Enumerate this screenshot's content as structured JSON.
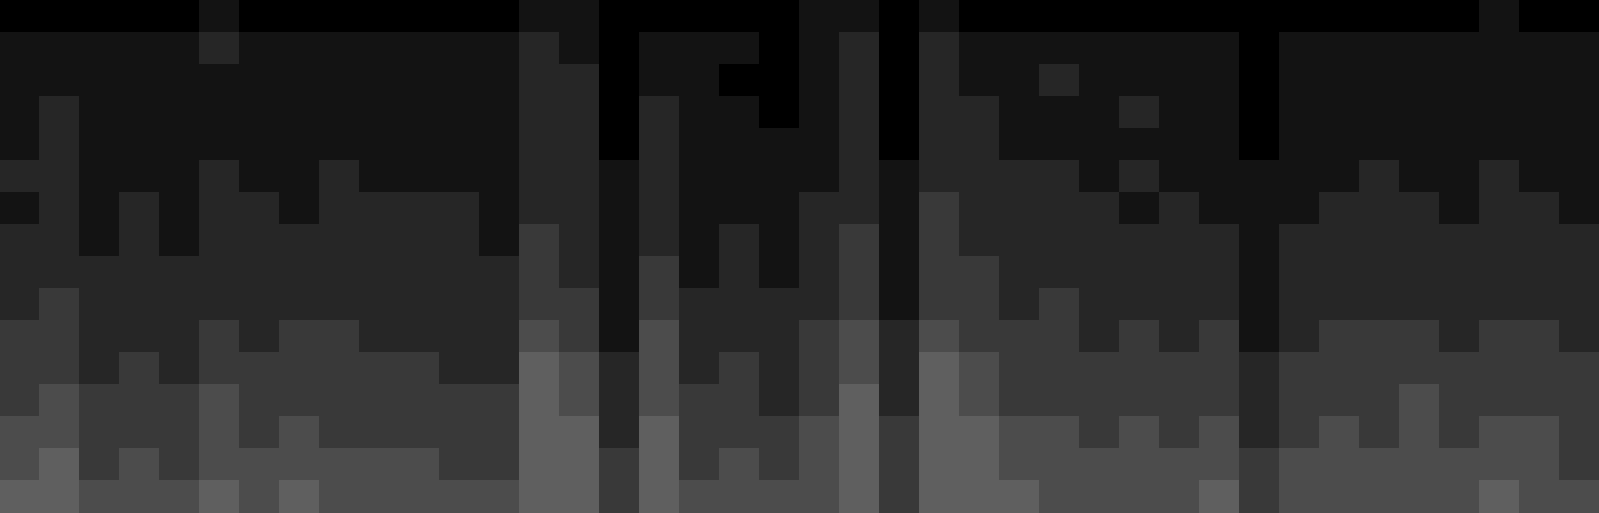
{
  "chart_data": {
    "type": "heatmap",
    "tick_labels": false,
    "grid": false,
    "color_range": [
      0,
      10
    ],
    "cells": [
      [
        0,
        0,
        0,
        0,
        0,
        1,
        0,
        0,
        0,
        0,
        0,
        0,
        0,
        1,
        1,
        0,
        0,
        0,
        0,
        0,
        1,
        1,
        0,
        1,
        0,
        0,
        0,
        0,
        0,
        0,
        0,
        0,
        0,
        0,
        0,
        0,
        0,
        1,
        0,
        0
      ],
      [
        1,
        1,
        1,
        1,
        1,
        2,
        1,
        1,
        1,
        1,
        1,
        1,
        1,
        2,
        1,
        0,
        1,
        1,
        1,
        0,
        1,
        2,
        0,
        2,
        1,
        1,
        1,
        1,
        1,
        1,
        1,
        0,
        1,
        1,
        1,
        1,
        1,
        1,
        1,
        1
      ],
      [
        1,
        1,
        1,
        1,
        1,
        1,
        1,
        1,
        1,
        1,
        1,
        1,
        1,
        2,
        2,
        0,
        1,
        1,
        0,
        0,
        1,
        2,
        0,
        2,
        1,
        1,
        2,
        1,
        1,
        1,
        1,
        0,
        1,
        1,
        1,
        1,
        1,
        1,
        1,
        1
      ],
      [
        1,
        2,
        1,
        1,
        1,
        1,
        1,
        1,
        1,
        1,
        1,
        1,
        1,
        2,
        2,
        0,
        2,
        1,
        1,
        0,
        1,
        2,
        0,
        2,
        2,
        1,
        1,
        1,
        2,
        1,
        1,
        0,
        1,
        1,
        1,
        1,
        1,
        1,
        1,
        1
      ],
      [
        1,
        2,
        1,
        1,
        1,
        1,
        1,
        1,
        1,
        1,
        1,
        1,
        1,
        2,
        2,
        0,
        2,
        1,
        1,
        1,
        1,
        2,
        0,
        2,
        2,
        1,
        1,
        1,
        1,
        1,
        1,
        0,
        1,
        1,
        1,
        1,
        1,
        1,
        1,
        1
      ],
      [
        2,
        2,
        1,
        1,
        1,
        2,
        1,
        1,
        2,
        1,
        1,
        1,
        1,
        2,
        2,
        1,
        2,
        1,
        1,
        1,
        1,
        2,
        1,
        2,
        2,
        2,
        2,
        1,
        2,
        1,
        1,
        1,
        1,
        1,
        2,
        1,
        1,
        2,
        1,
        1
      ],
      [
        1,
        2,
        1,
        2,
        1,
        2,
        2,
        1,
        2,
        2,
        2,
        2,
        1,
        2,
        2,
        1,
        2,
        1,
        1,
        1,
        2,
        2,
        1,
        3,
        2,
        2,
        2,
        2,
        1,
        2,
        1,
        1,
        1,
        2,
        2,
        2,
        1,
        2,
        2,
        1
      ],
      [
        2,
        2,
        1,
        2,
        1,
        2,
        2,
        2,
        2,
        2,
        2,
        2,
        1,
        3,
        2,
        1,
        2,
        1,
        2,
        1,
        2,
        3,
        1,
        3,
        2,
        2,
        2,
        2,
        2,
        2,
        2,
        1,
        2,
        2,
        2,
        2,
        2,
        2,
        2,
        2
      ],
      [
        2,
        2,
        2,
        2,
        2,
        2,
        2,
        2,
        2,
        2,
        2,
        2,
        2,
        3,
        2,
        1,
        3,
        1,
        2,
        1,
        2,
        3,
        1,
        3,
        3,
        2,
        2,
        2,
        2,
        2,
        2,
        1,
        2,
        2,
        2,
        2,
        2,
        2,
        2,
        2
      ],
      [
        2,
        3,
        2,
        2,
        2,
        2,
        2,
        2,
        2,
        2,
        2,
        2,
        2,
        3,
        3,
        1,
        3,
        2,
        2,
        2,
        2,
        3,
        1,
        3,
        3,
        2,
        3,
        2,
        2,
        2,
        2,
        1,
        2,
        2,
        2,
        2,
        2,
        2,
        2,
        2
      ],
      [
        3,
        3,
        2,
        2,
        2,
        3,
        2,
        3,
        3,
        2,
        2,
        2,
        2,
        4,
        3,
        1,
        4,
        2,
        2,
        2,
        3,
        4,
        2,
        4,
        3,
        3,
        3,
        2,
        3,
        2,
        3,
        1,
        2,
        3,
        3,
        3,
        2,
        3,
        3,
        2
      ],
      [
        3,
        3,
        2,
        3,
        2,
        3,
        3,
        3,
        3,
        3,
        3,
        2,
        2,
        5,
        4,
        2,
        4,
        2,
        3,
        2,
        3,
        4,
        2,
        5,
        4,
        3,
        3,
        3,
        3,
        3,
        3,
        2,
        3,
        3,
        3,
        3,
        3,
        3,
        3,
        3
      ],
      [
        3,
        4,
        3,
        3,
        3,
        4,
        3,
        3,
        3,
        3,
        3,
        3,
        3,
        5,
        4,
        2,
        4,
        3,
        3,
        2,
        3,
        5,
        2,
        5,
        4,
        3,
        3,
        3,
        3,
        3,
        3,
        2,
        3,
        3,
        3,
        4,
        3,
        3,
        3,
        3
      ],
      [
        4,
        4,
        3,
        3,
        3,
        4,
        3,
        4,
        3,
        3,
        3,
        3,
        3,
        5,
        5,
        2,
        5,
        3,
        3,
        3,
        4,
        5,
        3,
        5,
        5,
        4,
        4,
        3,
        4,
        3,
        4,
        2,
        3,
        4,
        3,
        4,
        3,
        4,
        4,
        3
      ],
      [
        4,
        5,
        3,
        4,
        3,
        4,
        4,
        4,
        4,
        4,
        4,
        3,
        3,
        5,
        5,
        3,
        5,
        3,
        4,
        3,
        4,
        5,
        3,
        5,
        5,
        4,
        4,
        4,
        4,
        4,
        4,
        3,
        4,
        4,
        4,
        4,
        4,
        4,
        4,
        3
      ],
      [
        5,
        5,
        4,
        4,
        4,
        5,
        4,
        5,
        4,
        4,
        4,
        4,
        4,
        5,
        5,
        3,
        5,
        4,
        4,
        4,
        4,
        5,
        3,
        5,
        5,
        5,
        4,
        4,
        4,
        4,
        5,
        3,
        4,
        4,
        4,
        4,
        4,
        5,
        4,
        4
      ]
    ]
  }
}
